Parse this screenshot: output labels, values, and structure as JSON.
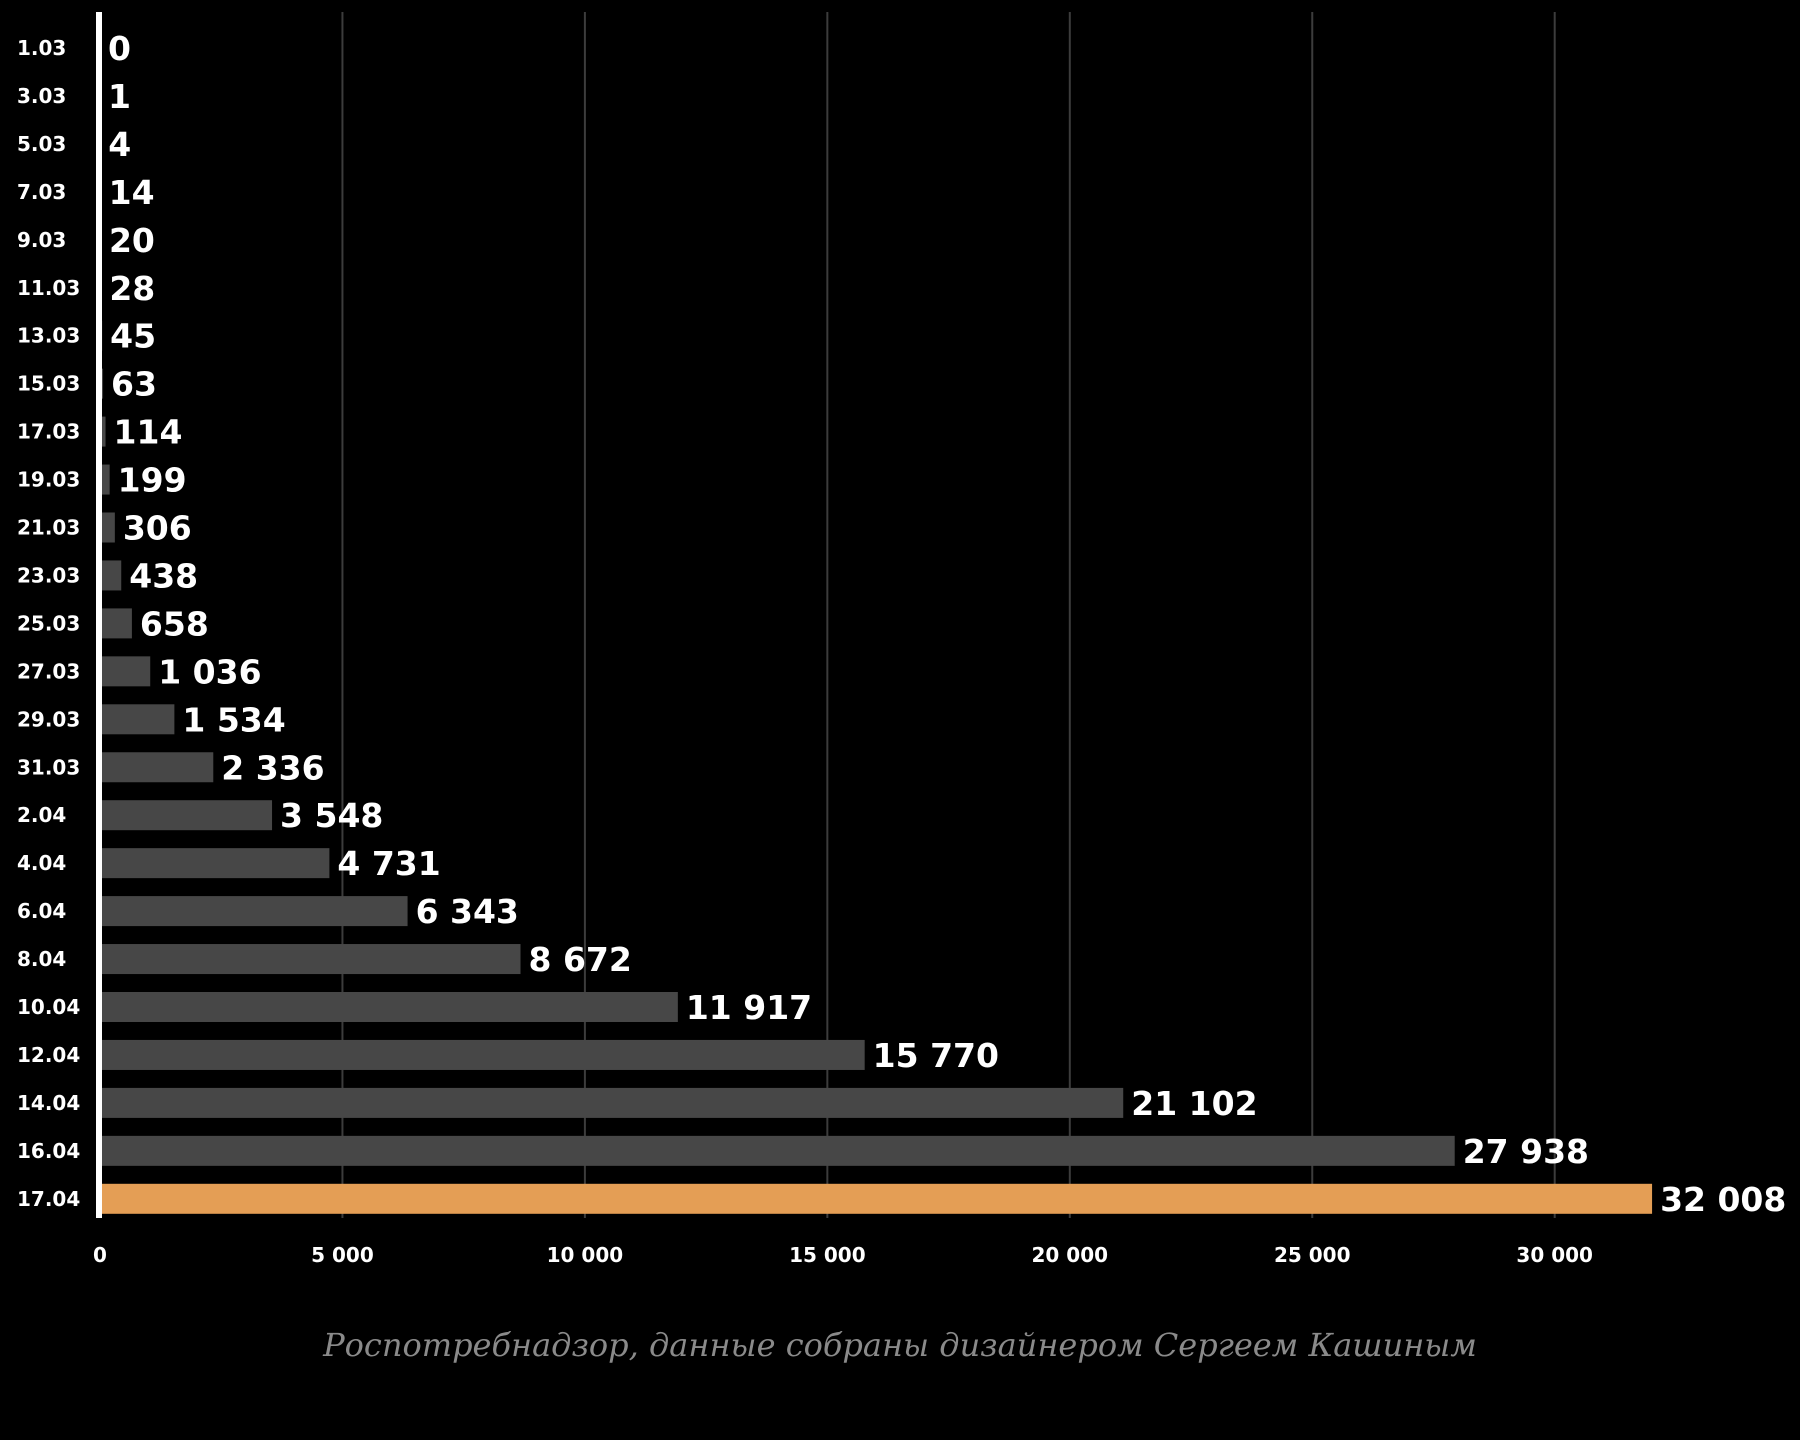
{
  "chart_data": {
    "type": "bar",
    "orientation": "horizontal",
    "categories": [
      "1.03",
      "3.03",
      "5.03",
      "7.03",
      "9.03",
      "11.03",
      "13.03",
      "15.03",
      "17.03",
      "19.03",
      "21.03",
      "23.03",
      "25.03",
      "27.03",
      "29.03",
      "31.03",
      "2.04",
      "4.04",
      "6.04",
      "8.04",
      "10.04",
      "12.04",
      "14.04",
      "16.04",
      "17.04"
    ],
    "values": [
      0,
      1,
      4,
      14,
      20,
      28,
      45,
      63,
      114,
      199,
      306,
      438,
      658,
      1036,
      1534,
      2336,
      3548,
      4731,
      6343,
      8672,
      11917,
      15770,
      21102,
      27938,
      32008
    ],
    "value_labels": [
      "0",
      "1",
      "4",
      "14",
      "20",
      "28",
      "45",
      "63",
      "114",
      "199",
      "306",
      "438",
      "658",
      "1 036",
      "1 534",
      "2 336",
      "3 548",
      "4 731",
      "6 343",
      "8 672",
      "11 917",
      "15 770",
      "21 102",
      "27 938",
      "32 008"
    ],
    "x_ticks": [
      0,
      5000,
      10000,
      15000,
      20000,
      25000,
      30000
    ],
    "x_tick_labels": [
      "0",
      "5 000",
      "10 000",
      "15 000",
      "20 000",
      "25 000",
      "30 000"
    ],
    "xlim": [
      0,
      34000
    ],
    "grid": true,
    "title": "",
    "xlabel": "",
    "ylabel": "",
    "colors": {
      "background": "#000000",
      "bar": "#474747",
      "highlight_bar": "#e49e55",
      "grid": "#3c3c3c",
      "axis": "#ffffff",
      "text": "#ffffff"
    },
    "highlight_category": "17.04"
  },
  "source": "Роспотребнадзор, данные собраны дизайнером Сергеем Кашиным"
}
